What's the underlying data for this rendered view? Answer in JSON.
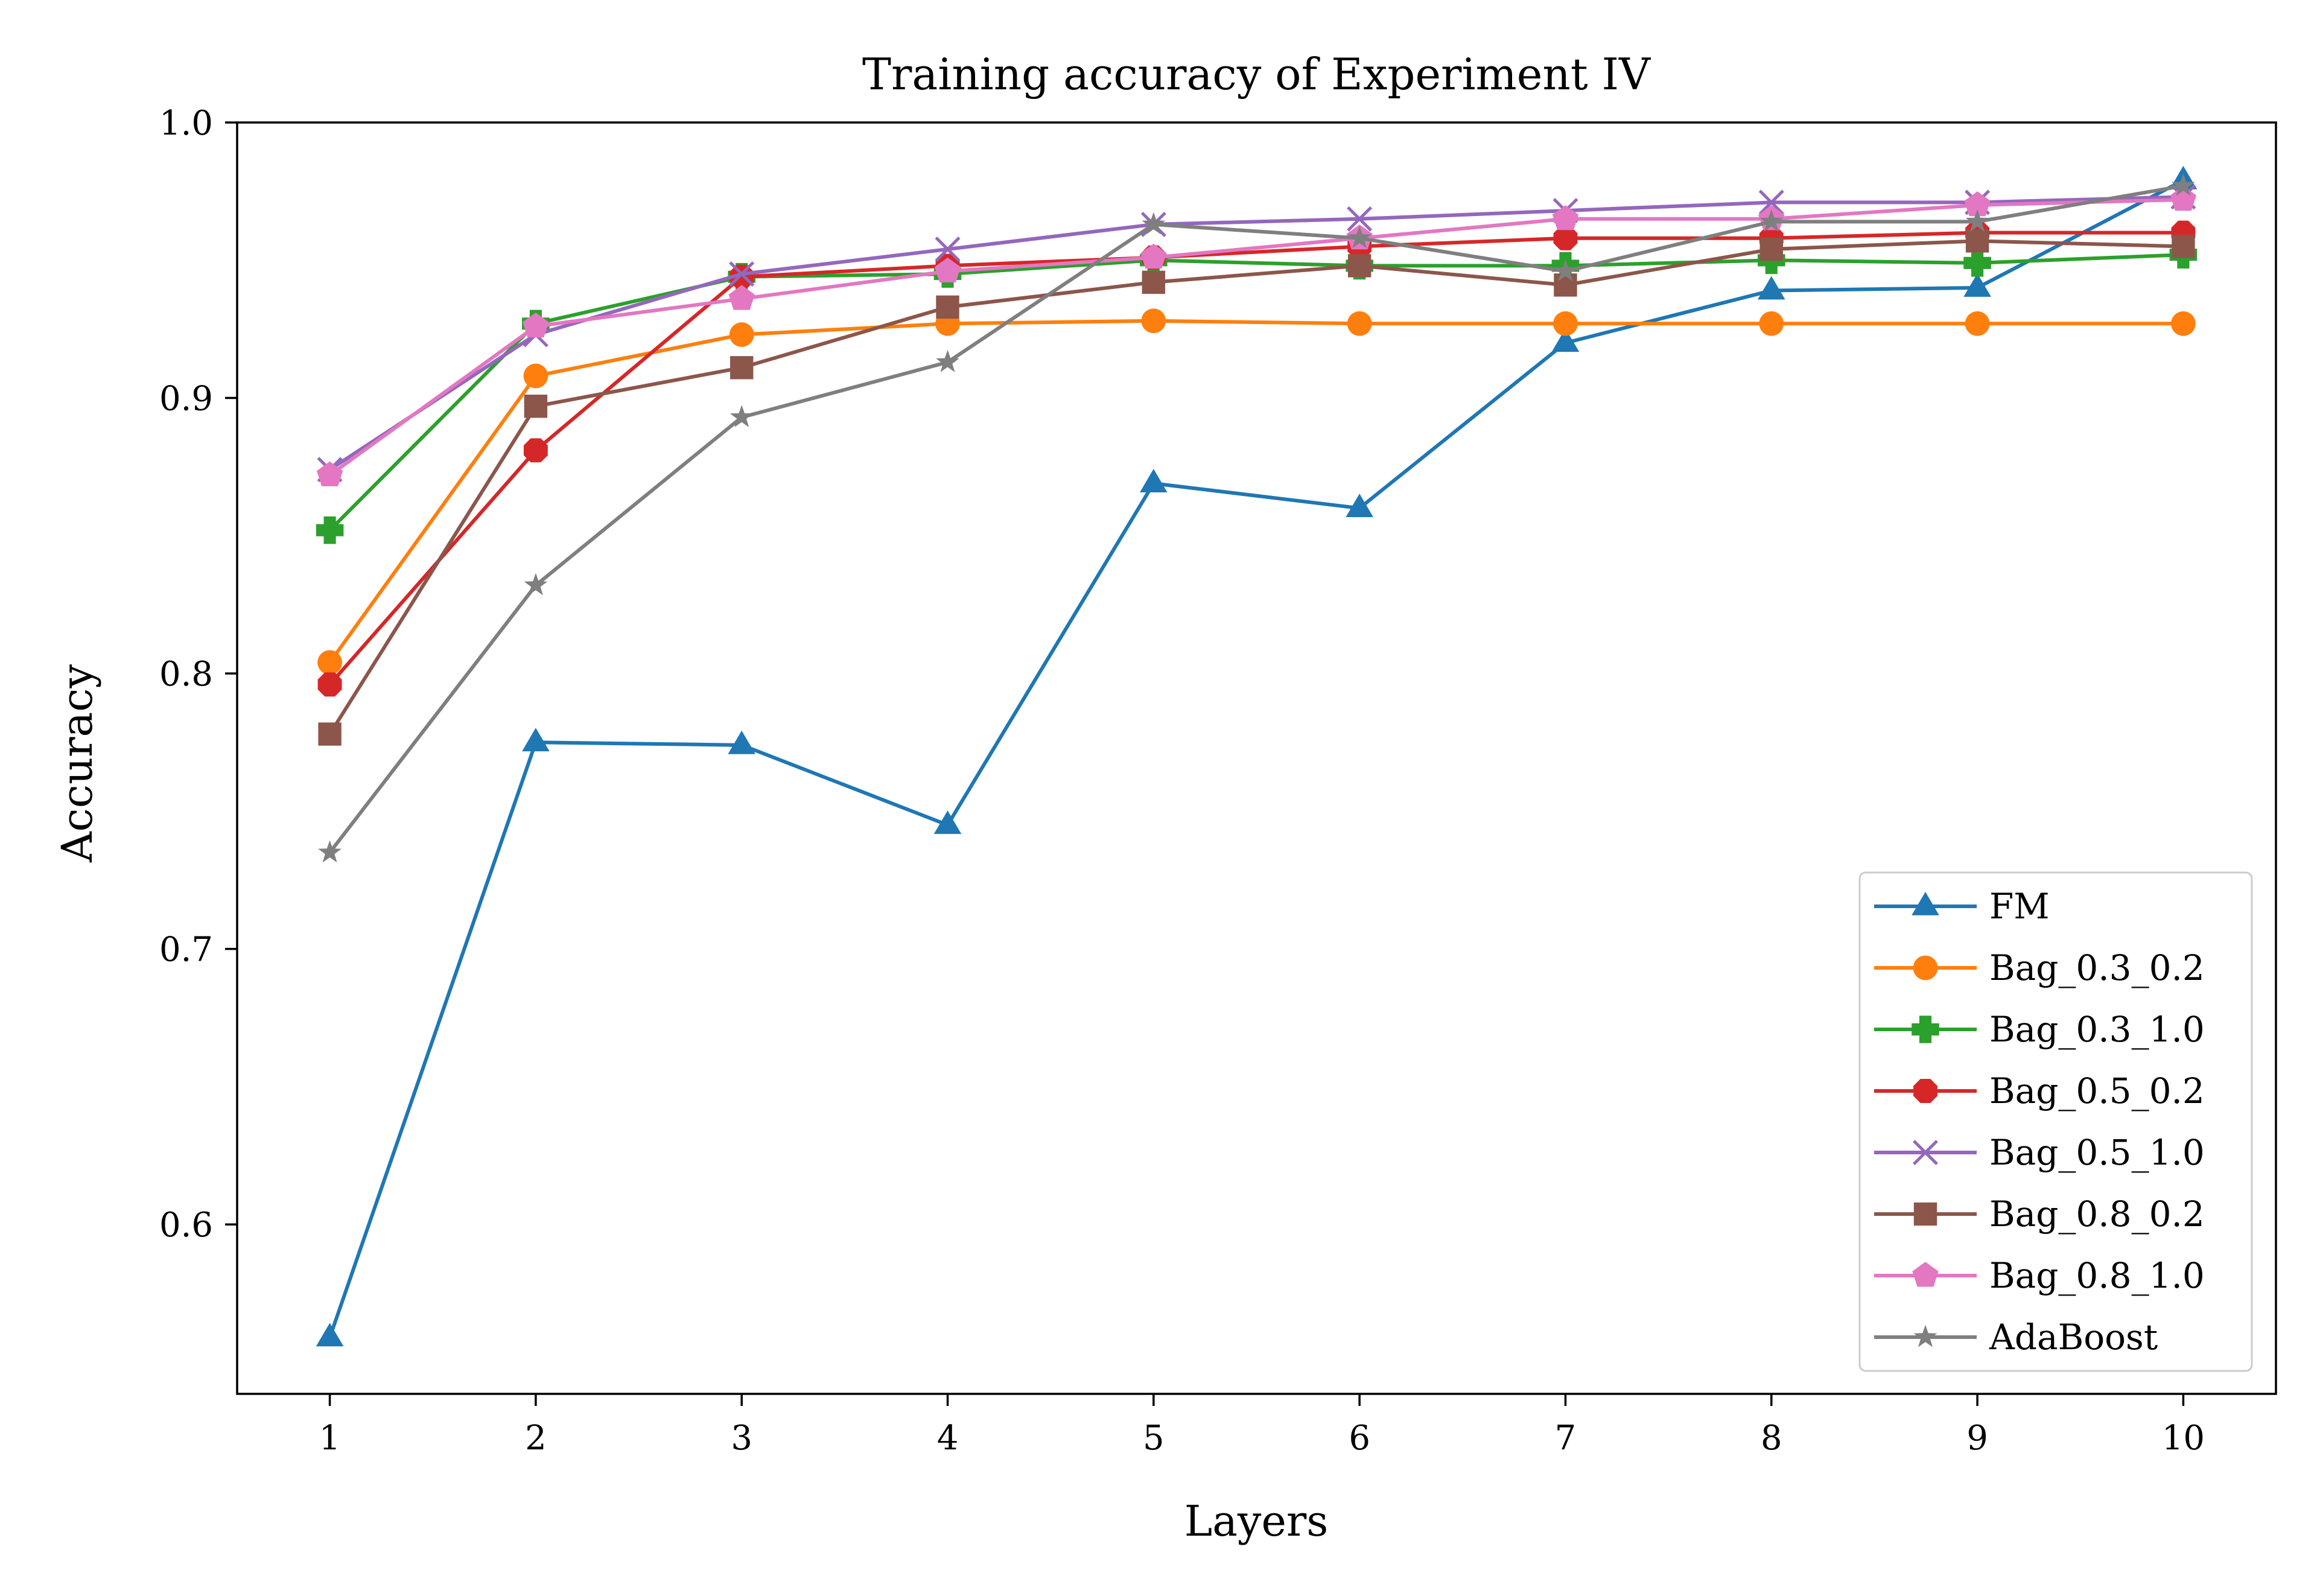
{
  "chart_data": {
    "type": "line",
    "title": "Training accuracy of Experiment IV",
    "xlabel": "Layers",
    "ylabel": "Accuracy",
    "x": [
      1,
      2,
      3,
      4,
      5,
      6,
      7,
      8,
      9,
      10
    ],
    "xlim": [
      0.55,
      10.45
    ],
    "ylim": [
      0.5385,
      1.0
    ],
    "xticks": [
      "1",
      "2",
      "3",
      "4",
      "5",
      "6",
      "7",
      "8",
      "9",
      "10"
    ],
    "yticks": [
      "0.6",
      "0.7",
      "0.8",
      "0.9",
      "1.0"
    ],
    "grid": false,
    "legend_position": "lower-right",
    "series": [
      {
        "name": "FM",
        "color": "#1f77b4",
        "marker": "triangle",
        "values": [
          0.559,
          0.775,
          0.774,
          0.745,
          0.869,
          0.86,
          0.92,
          0.939,
          0.94,
          0.979
        ]
      },
      {
        "name": "Bag_0.3_0.2",
        "color": "#ff7f0e",
        "marker": "circle",
        "values": [
          0.804,
          0.908,
          0.923,
          0.927,
          0.928,
          0.927,
          0.927,
          0.927,
          0.927,
          0.927
        ]
      },
      {
        "name": "Bag_0.3_1.0",
        "color": "#2ca02c",
        "marker": "plus",
        "values": [
          0.852,
          0.927,
          0.944,
          0.945,
          0.95,
          0.948,
          0.948,
          0.95,
          0.949,
          0.952
        ]
      },
      {
        "name": "Bag_0.5_0.2",
        "color": "#d62728",
        "marker": "octagon",
        "values": [
          0.796,
          0.881,
          0.944,
          0.948,
          0.951,
          0.955,
          0.958,
          0.958,
          0.96,
          0.96
        ]
      },
      {
        "name": "Bag_0.5_1.0",
        "color": "#9467bd",
        "marker": "x",
        "values": [
          0.874,
          0.923,
          0.945,
          0.954,
          0.963,
          0.965,
          0.968,
          0.971,
          0.971,
          0.973
        ]
      },
      {
        "name": "Bag_0.8_0.2",
        "color": "#8c564b",
        "marker": "square",
        "values": [
          0.778,
          0.897,
          0.911,
          0.933,
          0.942,
          0.948,
          0.941,
          0.954,
          0.957,
          0.955
        ]
      },
      {
        "name": "Bag_0.8_1.0",
        "color": "#e377c2",
        "marker": "pentagon",
        "values": [
          0.872,
          0.926,
          0.936,
          0.946,
          0.951,
          0.958,
          0.965,
          0.965,
          0.97,
          0.972
        ]
      },
      {
        "name": "AdaBoost",
        "color": "#7f7f7f",
        "marker": "star",
        "values": [
          0.735,
          0.832,
          0.893,
          0.913,
          0.963,
          0.958,
          0.946,
          0.964,
          0.964,
          0.977
        ]
      }
    ]
  }
}
